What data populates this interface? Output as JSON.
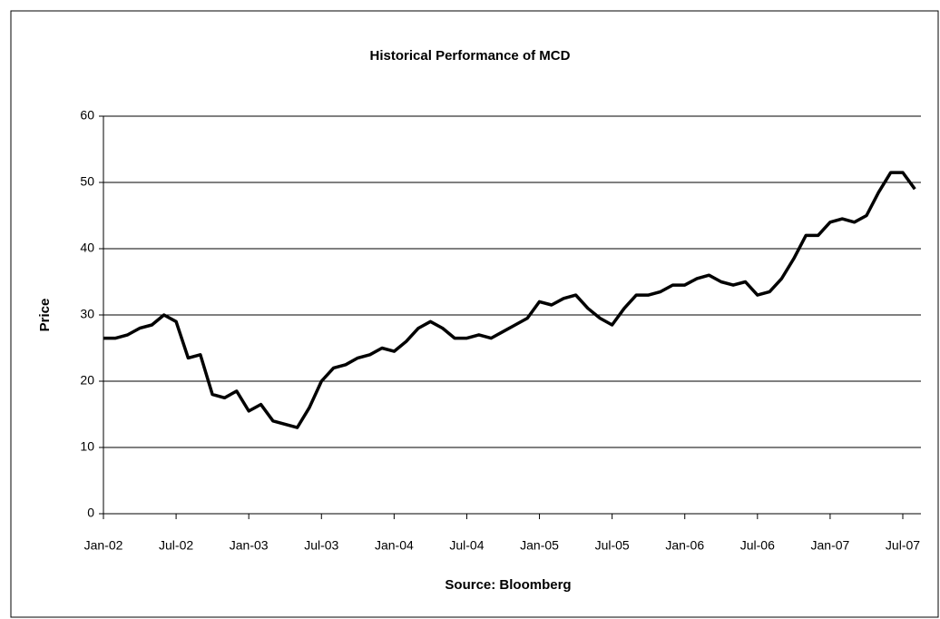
{
  "chart_data": {
    "type": "line",
    "title": "Historical Performance of MCD",
    "y_label": "Price",
    "x_label": "Source: Bloomberg",
    "categories": [
      "Jan-02",
      null,
      null,
      null,
      null,
      null,
      "Jul-02",
      null,
      null,
      null,
      null,
      null,
      "Jan-03",
      null,
      null,
      null,
      null,
      null,
      "Jul-03",
      null,
      null,
      null,
      null,
      null,
      "Jan-04",
      null,
      null,
      null,
      null,
      null,
      "Jul-04",
      null,
      null,
      null,
      null,
      null,
      "Jan-05",
      null,
      null,
      null,
      null,
      null,
      "Jul-05",
      null,
      null,
      null,
      null,
      null,
      "Jan-06",
      null,
      null,
      null,
      null,
      null,
      "Jul-06",
      null,
      null,
      null,
      null,
      null,
      "Jan-07",
      null,
      null,
      null,
      null,
      null,
      "Jul-07",
      null
    ],
    "series": [
      {
        "name": "MCD",
        "color": "#000000",
        "values": [
          26.5,
          26.5,
          27,
          28,
          28.5,
          30,
          29,
          23.5,
          24,
          18,
          17.5,
          18.5,
          15.5,
          16.5,
          14,
          13.5,
          13,
          16,
          20,
          22,
          22.5,
          23.5,
          24,
          25,
          24.5,
          26,
          28,
          29,
          28,
          26.5,
          26.5,
          27,
          26.5,
          27.5,
          28.5,
          29.5,
          32,
          31.5,
          32.5,
          33,
          31,
          29.5,
          28.5,
          31,
          33,
          33,
          33.5,
          34.5,
          34.5,
          35.5,
          36,
          35,
          34.5,
          35,
          33,
          33.5,
          35.5,
          38.5,
          42,
          42,
          44,
          44.5,
          44,
          45,
          48.5,
          51.5,
          51.5,
          49
        ]
      }
    ],
    "ylim": [
      0,
      60
    ],
    "yticks": [
      0,
      10,
      20,
      30,
      40,
      50,
      60
    ],
    "grid": true
  }
}
